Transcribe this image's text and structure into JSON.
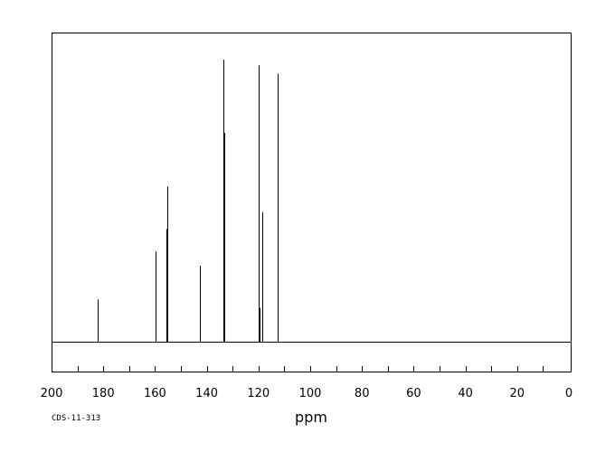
{
  "chart_data": {
    "type": "line",
    "title": "",
    "xlabel": "ppm",
    "ylabel": "",
    "xlim": [
      200,
      0
    ],
    "x_reversed": true,
    "ylim": [
      0,
      100
    ],
    "grid": false,
    "ticks": [
      "200",
      "180",
      "160",
      "140",
      "120",
      "100",
      "80",
      "60",
      "40",
      "20",
      "0"
    ],
    "tick_values": [
      200,
      180,
      160,
      140,
      120,
      100,
      80,
      60,
      40,
      20,
      0
    ],
    "minor_tick_step": 10,
    "peaks": [
      {
        "ppm": 182.3,
        "intensity": 15
      },
      {
        "ppm": 182.0,
        "intensity": 11
      },
      {
        "ppm": 159.9,
        "intensity": 32
      },
      {
        "ppm": 155.5,
        "intensity": 40
      },
      {
        "ppm": 155.2,
        "intensity": 55
      },
      {
        "ppm": 142.8,
        "intensity": 27
      },
      {
        "ppm": 142.5,
        "intensity": 8
      },
      {
        "ppm": 133.6,
        "intensity": 100
      },
      {
        "ppm": 133.3,
        "intensity": 74
      },
      {
        "ppm": 119.9,
        "intensity": 98
      },
      {
        "ppm": 119.6,
        "intensity": 12
      },
      {
        "ppm": 118.4,
        "intensity": 46
      },
      {
        "ppm": 112.7,
        "intensity": 95
      }
    ]
  },
  "footer": {
    "code": "CDS-11-313"
  }
}
